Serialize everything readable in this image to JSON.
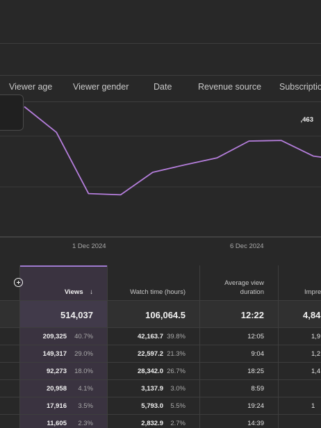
{
  "tabs": [
    "Viewer age",
    "Viewer gender",
    "Date",
    "Revenue source",
    "Subscriptio"
  ],
  "tooltip": {
    "value": ",463"
  },
  "chart_data": {
    "type": "line",
    "x_labels": [
      "1 Dec 2024",
      "6 Dec 2024"
    ],
    "series": [
      {
        "values": [
          58.5,
          54.4,
          44.6,
          44.4,
          48.0,
          49.2,
          50.3,
          53.0,
          53.1,
          50.6,
          49.9
        ]
      }
    ],
    "color": "#b57edc"
  },
  "table": {
    "headers": {
      "views": "Views",
      "sort_arrow": "↓",
      "watch_time": "Watch time (hours)",
      "avg_duration_line1": "Average view",
      "avg_duration_line2": "duration",
      "impressions": "Impre"
    },
    "totals": {
      "views": "514,037",
      "watch_time": "106,064.5",
      "avg_duration": "12:22",
      "impressions": "4,84"
    },
    "rows": [
      {
        "views": "209,325",
        "views_pct": "40.7%",
        "watch": "42,163.7",
        "watch_pct": "39.8%",
        "avg": "12:05",
        "imp": "1,9"
      },
      {
        "views": "149,317",
        "views_pct": "29.0%",
        "watch": "22,597.2",
        "watch_pct": "21.3%",
        "avg": "9:04",
        "imp": "1,2"
      },
      {
        "views": "92,273",
        "views_pct": "18.0%",
        "watch": "28,342.0",
        "watch_pct": "26.7%",
        "avg": "18:25",
        "imp": "1,4"
      },
      {
        "views": "20,958",
        "views_pct": "4.1%",
        "watch": "3,137.9",
        "watch_pct": "3.0%",
        "avg": "8:59",
        "imp": ""
      },
      {
        "views": "17,916",
        "views_pct": "3.5%",
        "watch": "5,793.0",
        "watch_pct": "5.5%",
        "avg": "19:24",
        "imp": "1"
      },
      {
        "views": "11,605",
        "views_pct": "2.3%",
        "watch": "2,832.9",
        "watch_pct": "2.7%",
        "avg": "14:39",
        "imp": ""
      }
    ]
  }
}
